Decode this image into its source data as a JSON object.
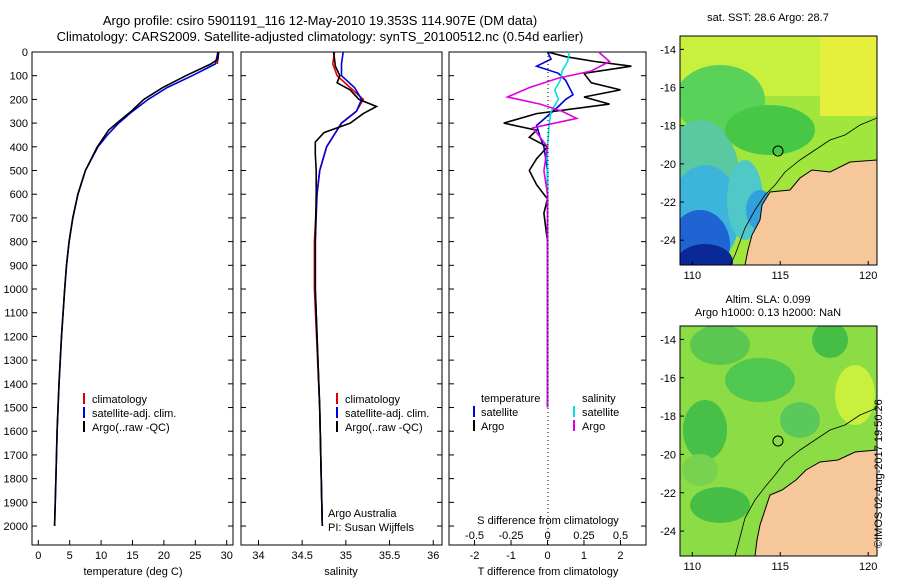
{
  "header": {
    "line1": "Argo profile: csiro 5901191_116 12-May-2010 19.353S 114.907E (DM data)",
    "line2": "Climatology: CARS2009. Satellite-adjusted climatology: synTS_20100512.nc (0.54d earlier)"
  },
  "maps": {
    "sst_title": "sat. SST: 28.6 Argo: 28.7",
    "sla_title_1": "Altim. SLA: 0.099",
    "sla_title_2": "Argo h1000: 0.13 h2000: NaN",
    "credit": "©IMOS 02-Aug-2017 19:50:26",
    "lat_ticks": [
      -14,
      -16,
      -18,
      -20,
      -22,
      -24
    ],
    "lon_ticks": [
      110,
      115,
      120
    ],
    "argo_position": {
      "lon": 114.907,
      "lat": -19.353
    },
    "colors": {
      "land": "#f5c79b",
      "coast": "#000000"
    }
  },
  "chart_data": [
    {
      "type": "line",
      "xlabel": "temperature (deg C)",
      "ylabel": "",
      "xlim": [
        -1,
        31
      ],
      "ylim": [
        2080,
        0
      ],
      "xticks": [
        0,
        5,
        10,
        15,
        20,
        25,
        30
      ],
      "yticks": [
        0,
        100,
        200,
        300,
        400,
        500,
        600,
        700,
        800,
        900,
        1000,
        1100,
        1200,
        1300,
        1400,
        1500,
        1600,
        1700,
        1800,
        1900,
        2000
      ],
      "legend": [
        "climatology",
        "satellite-adj. clim.",
        "Argo(..raw -QC)"
      ],
      "series": [
        {
          "name": "climatology",
          "color": "#e00000",
          "depth": [
            0,
            50
          ],
          "values": [
            28.7,
            28.5
          ]
        },
        {
          "name": "satellite-adj. clim.",
          "color": "#0000e0",
          "depth": [
            0,
            50,
            100,
            150,
            200,
            250,
            300,
            350,
            400,
            500,
            600,
            700,
            800,
            900,
            1000,
            1200,
            1400,
            1600,
            1800,
            2000
          ],
          "values": [
            28.6,
            28.2,
            24.5,
            20.5,
            17.5,
            15.0,
            12.8,
            11.0,
            9.5,
            7.5,
            6.3,
            5.5,
            4.9,
            4.5,
            4.2,
            3.7,
            3.3,
            3.0,
            2.8,
            2.6
          ]
        },
        {
          "name": "Argo(..raw -QC)",
          "color": "#000000",
          "depth": [
            0,
            30,
            50,
            100,
            150,
            200,
            250,
            300,
            330,
            400,
            500,
            600,
            700,
            800,
            900,
            1000,
            1200,
            1400,
            1600,
            1800,
            2000
          ],
          "values": [
            28.7,
            28.6,
            27.5,
            23.5,
            19.8,
            16.8,
            14.8,
            12.5,
            11.2,
            9.4,
            7.5,
            6.3,
            5.5,
            4.9,
            4.5,
            4.2,
            3.7,
            3.3,
            3.0,
            2.8,
            2.6
          ]
        }
      ]
    },
    {
      "type": "line",
      "xlabel": "salinity",
      "ylabel": "",
      "xlim": [
        33.8,
        36.1
      ],
      "ylim": [
        2080,
        0
      ],
      "xticks": [
        34,
        34.5,
        35,
        35.5,
        36
      ],
      "legend": [
        "climatology",
        "satellite-adj. clim.",
        "Argo(..raw -QC)"
      ],
      "annotation": [
        "Argo Australia",
        "PI: Susan Wijffels"
      ],
      "series": [
        {
          "name": "climatology",
          "color": "#e00000",
          "depth": [
            0,
            50,
            100,
            150,
            200,
            250,
            300,
            400,
            500,
            600,
            800,
            1000,
            1500,
            2000
          ],
          "values": [
            34.87,
            34.85,
            34.9,
            35.05,
            35.2,
            35.12,
            34.95,
            34.78,
            34.7,
            34.67,
            34.64,
            34.64,
            34.7,
            34.73
          ]
        },
        {
          "name": "satellite-adj. clim.",
          "color": "#0000e0",
          "depth": [
            0,
            50,
            100,
            150,
            200,
            250,
            300,
            400,
            500,
            600,
            800,
            1000,
            1500,
            2000
          ],
          "values": [
            34.97,
            34.95,
            34.95,
            35.1,
            35.18,
            35.12,
            34.95,
            34.78,
            34.7,
            34.67,
            34.65,
            34.65,
            34.7,
            34.73
          ]
        },
        {
          "name": "Argo(..raw -QC)",
          "color": "#000000",
          "depth": [
            0,
            30,
            60,
            100,
            130,
            160,
            180,
            200,
            230,
            260,
            300,
            340,
            380,
            430,
            500,
            600,
            800,
            1000,
            1500,
            2000
          ],
          "values": [
            34.86,
            34.87,
            34.88,
            34.93,
            34.9,
            35.05,
            35.1,
            35.15,
            35.35,
            35.2,
            35.05,
            34.75,
            34.65,
            34.65,
            34.66,
            34.66,
            34.65,
            34.65,
            34.7,
            34.73
          ]
        }
      ]
    },
    {
      "type": "line",
      "xlabel": "T difference from climatology",
      "x2label": "S difference from climatology",
      "ylabel": "",
      "xlim": [
        -2.7,
        2.7
      ],
      "ylim": [
        2080,
        0
      ],
      "xticks": [
        -2,
        -1,
        0,
        1,
        2
      ],
      "x2ticks": [
        "-0.5",
        "-0.25",
        "0",
        "0.25",
        "0.5"
      ],
      "legend_left_title": "temperature",
      "legend_right_title": "salinity",
      "series": [
        {
          "name": "satellite",
          "group": "temperature",
          "color": "#0000e0",
          "depth": [
            0,
            30,
            60,
            90,
            120,
            150,
            180,
            200,
            230,
            270,
            310,
            360,
            400,
            500,
            600,
            800,
            1000,
            1500
          ],
          "values": [
            0.0,
            0.1,
            -0.3,
            0.3,
            0.5,
            0.6,
            0.7,
            0.5,
            0.3,
            0.0,
            -0.3,
            -0.2,
            -0.1,
            0.0,
            0.0,
            0.0,
            0.0,
            0.0
          ]
        },
        {
          "name": "Argo",
          "group": "temperature",
          "color": "#000000",
          "depth": [
            0,
            20,
            40,
            60,
            90,
            130,
            160,
            190,
            220,
            260,
            300,
            330,
            360,
            400,
            450,
            500,
            560,
            620,
            680,
            800,
            1000,
            1500
          ],
          "values": [
            0.0,
            0.5,
            1.3,
            2.3,
            1.0,
            1.2,
            2.0,
            1.0,
            1.7,
            -0.3,
            -1.2,
            -0.3,
            -0.5,
            0.0,
            -0.3,
            -0.5,
            -0.3,
            0.0,
            -0.1,
            0.0,
            0.0,
            0.0
          ]
        },
        {
          "name": "satellite",
          "group": "salinity",
          "color": "#00e0e0",
          "depth": [
            0,
            40,
            80,
            120,
            160,
            200,
            250,
            300,
            400,
            500,
            600,
            1000,
            1500
          ],
          "values": [
            0.6,
            0.55,
            0.4,
            0.35,
            0.2,
            0.3,
            0.1,
            0.05,
            0.0,
            0.0,
            0.0,
            0.0,
            0.0
          ]
        },
        {
          "name": "Argo",
          "group": "salinity",
          "color": "#e000e0",
          "depth": [
            0,
            40,
            80,
            110,
            150,
            190,
            220,
            250,
            280,
            320,
            360,
            400,
            500,
            600,
            800,
            1000,
            1500
          ],
          "values": [
            1.4,
            1.7,
            1.2,
            0.3,
            -0.5,
            -1.1,
            -0.2,
            0.4,
            0.8,
            -0.4,
            -0.2,
            0.0,
            -0.1,
            0.0,
            0.0,
            0.0,
            0.0
          ]
        }
      ]
    }
  ]
}
